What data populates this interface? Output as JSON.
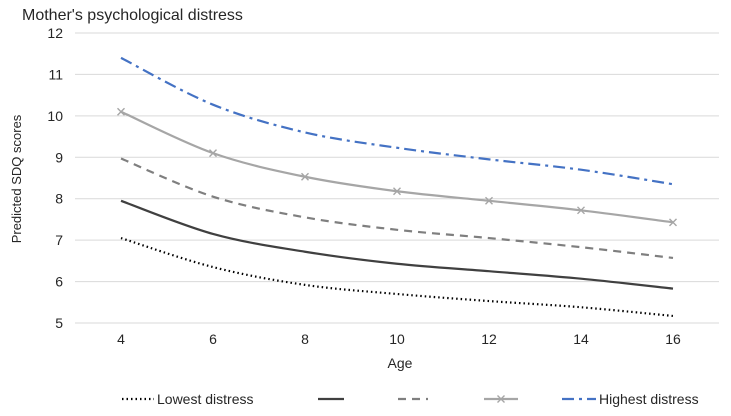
{
  "chart_data": {
    "type": "line",
    "title": "Mother's psychological  distress",
    "xlabel": "Age",
    "ylabel": "Predicted SDQ scores",
    "x": [
      4,
      6,
      8,
      10,
      12,
      14,
      16
    ],
    "xlim": [
      3,
      17
    ],
    "ylim": [
      5,
      12
    ],
    "yticks": [
      5,
      6,
      7,
      8,
      9,
      10,
      11,
      12
    ],
    "grid": "horizontal",
    "legend_position": "bottom",
    "series": [
      {
        "name": "Lowest distress",
        "style": "dotted",
        "color": "#000000",
        "marker": "none",
        "values": [
          7.05,
          6.35,
          5.92,
          5.7,
          5.53,
          5.38,
          5.17
        ]
      },
      {
        "name": "",
        "style": "solid",
        "color": "#404040",
        "marker": "none",
        "values": [
          7.95,
          7.15,
          6.72,
          6.43,
          6.25,
          6.07,
          5.83
        ]
      },
      {
        "name": "",
        "style": "dashed",
        "color": "#7f7f7f",
        "marker": "none",
        "values": [
          8.97,
          8.05,
          7.55,
          7.25,
          7.05,
          6.83,
          6.57
        ]
      },
      {
        "name": "",
        "style": "solid",
        "color": "#a6a6a6",
        "marker": "x",
        "values": [
          10.1,
          9.1,
          8.53,
          8.18,
          7.95,
          7.72,
          7.43
        ]
      },
      {
        "name": "Highest distress",
        "style": "dashdot",
        "color": "#4472c4",
        "marker": "none",
        "values": [
          11.4,
          10.27,
          9.6,
          9.23,
          8.95,
          8.7,
          8.35
        ]
      }
    ]
  }
}
